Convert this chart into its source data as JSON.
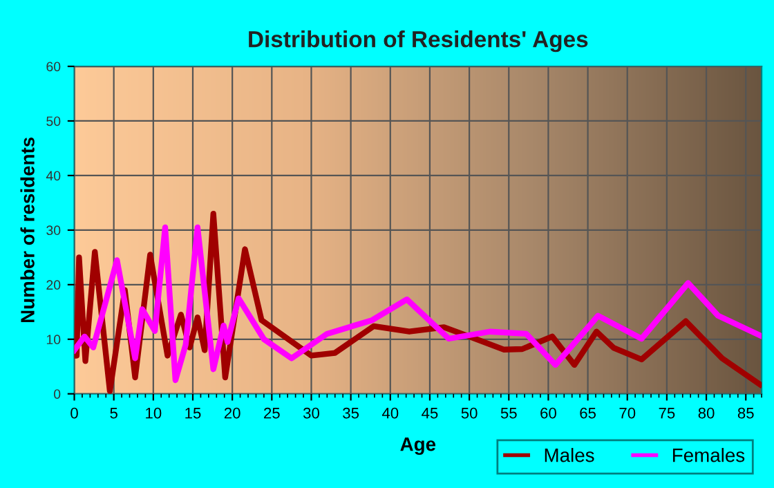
{
  "chart_data": {
    "type": "line",
    "title": "Distribution of Residents' Ages",
    "xlabel": "Age",
    "ylabel": "Number of residents",
    "xlim": [
      0,
      87
    ],
    "xticks": [
      0,
      5,
      10,
      15,
      20,
      25,
      30,
      35,
      40,
      45,
      50,
      55,
      60,
      65,
      70,
      75,
      80,
      85
    ],
    "ylim": [
      0,
      60
    ],
    "yticks": [
      0,
      10,
      20,
      30,
      40,
      50,
      60
    ],
    "grid": true,
    "legend": "bottom right",
    "marker": "none",
    "line_style": "solid",
    "series": [
      {
        "name": "Males",
        "color": "#a00000",
        "x": [
          0,
          0.3,
          0.6,
          1.4,
          2.6,
          4.5,
          6.4,
          7.7,
          9.6,
          11.8,
          13.5,
          14.6,
          15.6,
          16.5,
          17.6,
          19.1,
          21.6,
          23.7,
          30,
          33,
          37.9,
          42.4,
          46.8,
          50,
          54.4,
          56.7,
          60.5,
          63.3,
          66.1,
          68.3,
          71.8,
          77.4,
          82,
          86.8
        ],
        "values": [
          7,
          7,
          25,
          6,
          26,
          0.5,
          19,
          3,
          25.5,
          7,
          14.5,
          8.5,
          14,
          8,
          33,
          3,
          26.5,
          13.5,
          7,
          7.5,
          12.4,
          11.4,
          12.2,
          10.5,
          8.1,
          8.2,
          10.5,
          5.3,
          11.4,
          8.4,
          6.3,
          13.3,
          6.5,
          1.7
        ]
      },
      {
        "name": "Females",
        "color": "#ff00ff",
        "x": [
          0,
          1.3,
          2.4,
          4,
          5.4,
          7.7,
          8.6,
          10.2,
          11.5,
          12.8,
          14.1,
          15.6,
          17.6,
          18.9,
          19.4,
          20.8,
          24,
          27.5,
          32,
          37.7,
          42.1,
          47.4,
          52.6,
          57.2,
          60.9,
          66.3,
          71.8,
          77.7,
          81.5,
          86.8
        ],
        "values": [
          8,
          10.5,
          8.5,
          17,
          24.5,
          6.5,
          15.5,
          11.5,
          30.5,
          2.5,
          9,
          30.5,
          4.5,
          12.5,
          9.5,
          17.5,
          10,
          6.5,
          11,
          13.5,
          17.3,
          10.1,
          11.4,
          11,
          5.3,
          14.3,
          10.1,
          20.3,
          14.3,
          10.7
        ]
      }
    ]
  }
}
